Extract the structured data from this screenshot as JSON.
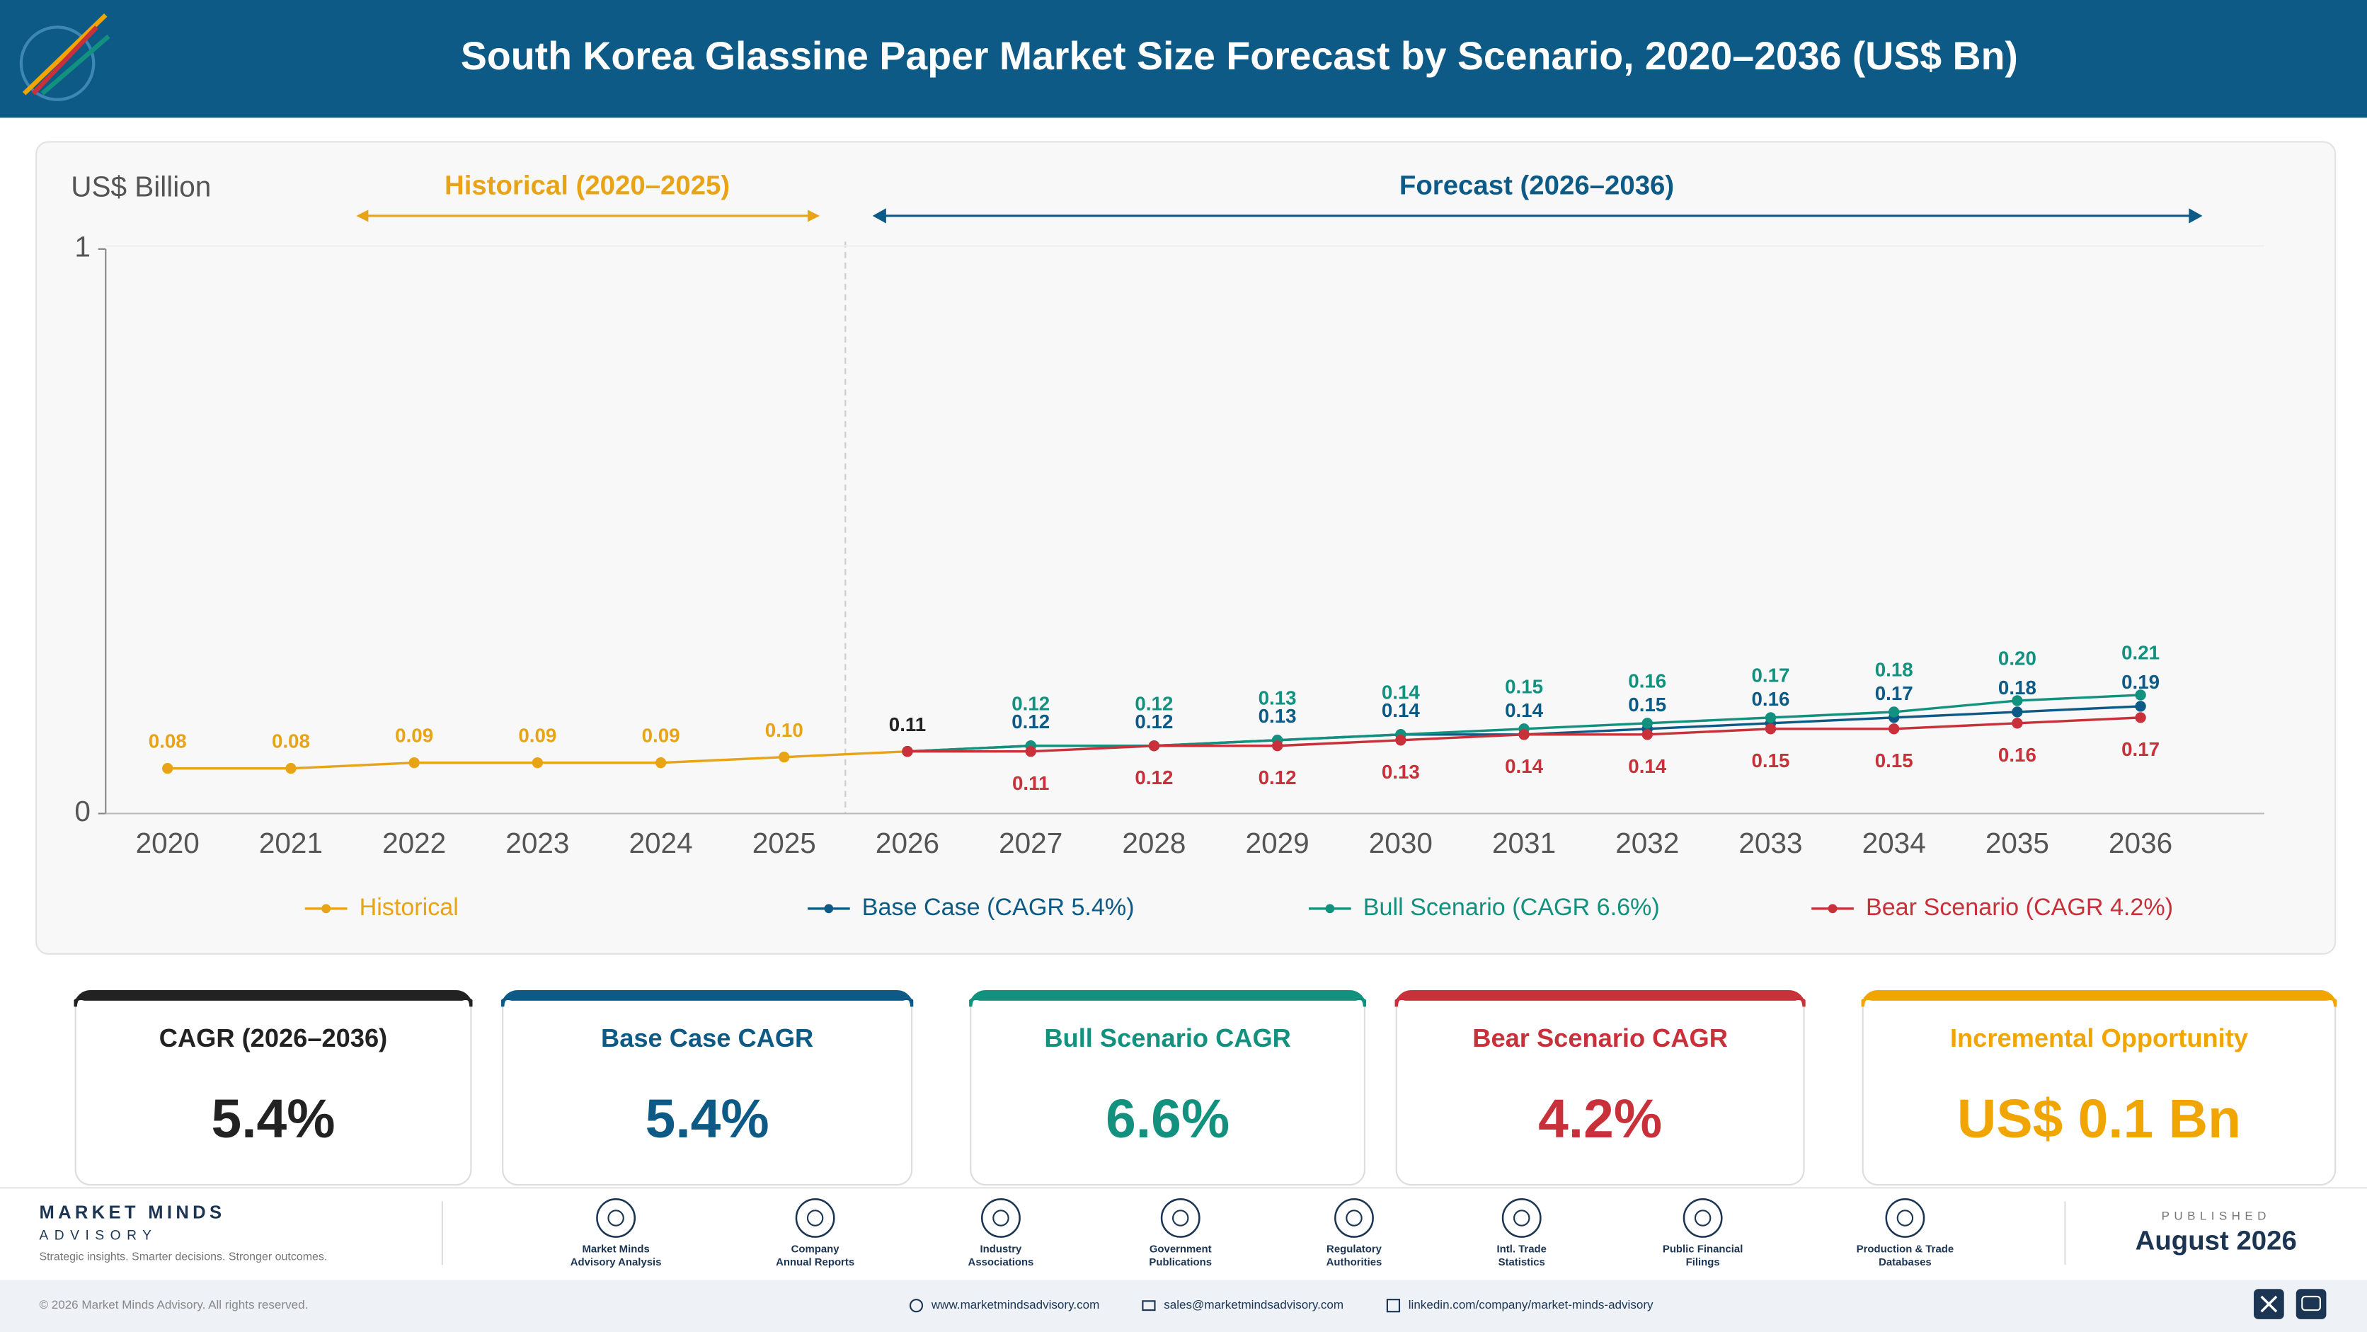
{
  "header": {
    "title": "South Korea Glassine Paper Market Size Forecast by Scenario, 2020–2036 (US$ Bn)"
  },
  "chart_data": {
    "type": "line",
    "y_label": "US$ Billion",
    "annotations": [
      "Historical (2020–2025)",
      "Forecast (2026–2036)"
    ],
    "categories": [
      "2020",
      "2021",
      "2022",
      "2023",
      "2024",
      "2025",
      "2026",
      "2027",
      "2028",
      "2029",
      "2030",
      "2031",
      "2032",
      "2033",
      "2034",
      "2035",
      "2036"
    ],
    "series": [
      {
        "name": "Historical",
        "color": "#e8a317",
        "values": [
          0.08,
          0.08,
          0.09,
          0.09,
          0.09,
          0.1,
          0.11,
          null,
          null,
          null,
          null,
          null,
          null,
          null,
          null,
          null,
          null
        ],
        "value_labels": [
          "0.08",
          "0.08",
          "0.09",
          "0.09",
          "0.09",
          "0.10",
          "0.11",
          null,
          null,
          null,
          null,
          null,
          null,
          null,
          null,
          null,
          null
        ]
      },
      {
        "name": "Base Case (CAGR 5.4%)",
        "color": "#0d5a86",
        "values": [
          null,
          null,
          null,
          null,
          null,
          null,
          0.11,
          0.12,
          0.12,
          0.13,
          0.14,
          0.14,
          0.15,
          0.16,
          0.17,
          0.18,
          0.19
        ],
        "value_labels": [
          null,
          null,
          null,
          null,
          null,
          null,
          null,
          "0.12",
          "0.12",
          "0.13",
          "0.14",
          "0.14",
          "0.15",
          "0.16",
          "0.17",
          "0.18",
          "0.19"
        ]
      },
      {
        "name": "Bull Scenario (CAGR 6.6%)",
        "color": "#12917f",
        "values": [
          null,
          null,
          null,
          null,
          null,
          null,
          0.11,
          0.12,
          0.12,
          0.13,
          0.14,
          0.15,
          0.16,
          0.17,
          0.18,
          0.2,
          0.21
        ],
        "value_labels": [
          null,
          null,
          null,
          null,
          null,
          null,
          null,
          "0.12",
          "0.12",
          "0.13",
          "0.14",
          "0.15",
          "0.16",
          "0.17",
          "0.18",
          "0.20",
          "0.21"
        ]
      },
      {
        "name": "Bear Scenario (CAGR 4.2%)",
        "color": "#c8313a",
        "values": [
          null,
          null,
          null,
          null,
          null,
          null,
          0.11,
          0.11,
          0.12,
          0.12,
          0.13,
          0.14,
          0.14,
          0.15,
          0.15,
          0.16,
          0.17
        ],
        "value_labels": [
          null,
          null,
          null,
          null,
          null,
          null,
          null,
          "0.11",
          "0.12",
          "0.12",
          "0.13",
          "0.14",
          "0.14",
          "0.15",
          "0.15",
          "0.16",
          "0.17"
        ]
      }
    ],
    "ylim": [
      0,
      1
    ],
    "yticks": [
      0,
      1
    ],
    "grid": false,
    "legend": "bottom"
  },
  "kpis": [
    {
      "title": "CAGR (2026–2036)",
      "value": "5.4%",
      "color": "#222222"
    },
    {
      "title": "Base Case CAGR",
      "value": "5.4%",
      "color": "#0d5a86"
    },
    {
      "title": "Bull Scenario CAGR",
      "value": "6.6%",
      "color": "#12917f"
    },
    {
      "title": "Bear Scenario CAGR",
      "value": "4.2%",
      "color": "#c8313a"
    },
    {
      "title": "Incremental Opportunity",
      "value": "US$ 0.1 Bn",
      "color": "#f0a500"
    }
  ],
  "footer": {
    "brand": "MARKET MINDS",
    "sub": "ADVISORY",
    "tagline": "Strategic insights. Smarter decisions. Stronger outcomes.",
    "sources": [
      [
        "Market Minds",
        "Advisory Analysis"
      ],
      [
        "Company",
        "Annual Reports"
      ],
      [
        "Industry",
        "Associations"
      ],
      [
        "Government",
        "Publications"
      ],
      [
        "Regulatory",
        "Authorities"
      ],
      [
        "Intl. Trade",
        "Statistics"
      ],
      [
        "Public Financial",
        "Filings"
      ],
      [
        "Production & Trade",
        "Databases"
      ]
    ],
    "published_label": "PUBLISHED",
    "published": "August 2026",
    "copyright": "© 2026 Market Minds Advisory. All rights reserved.",
    "website": "www.marketmindsadvisory.com",
    "email": "sales@marketmindsadvisory.com",
    "linkedin": "linkedin.com/company/market-minds-advisory"
  }
}
